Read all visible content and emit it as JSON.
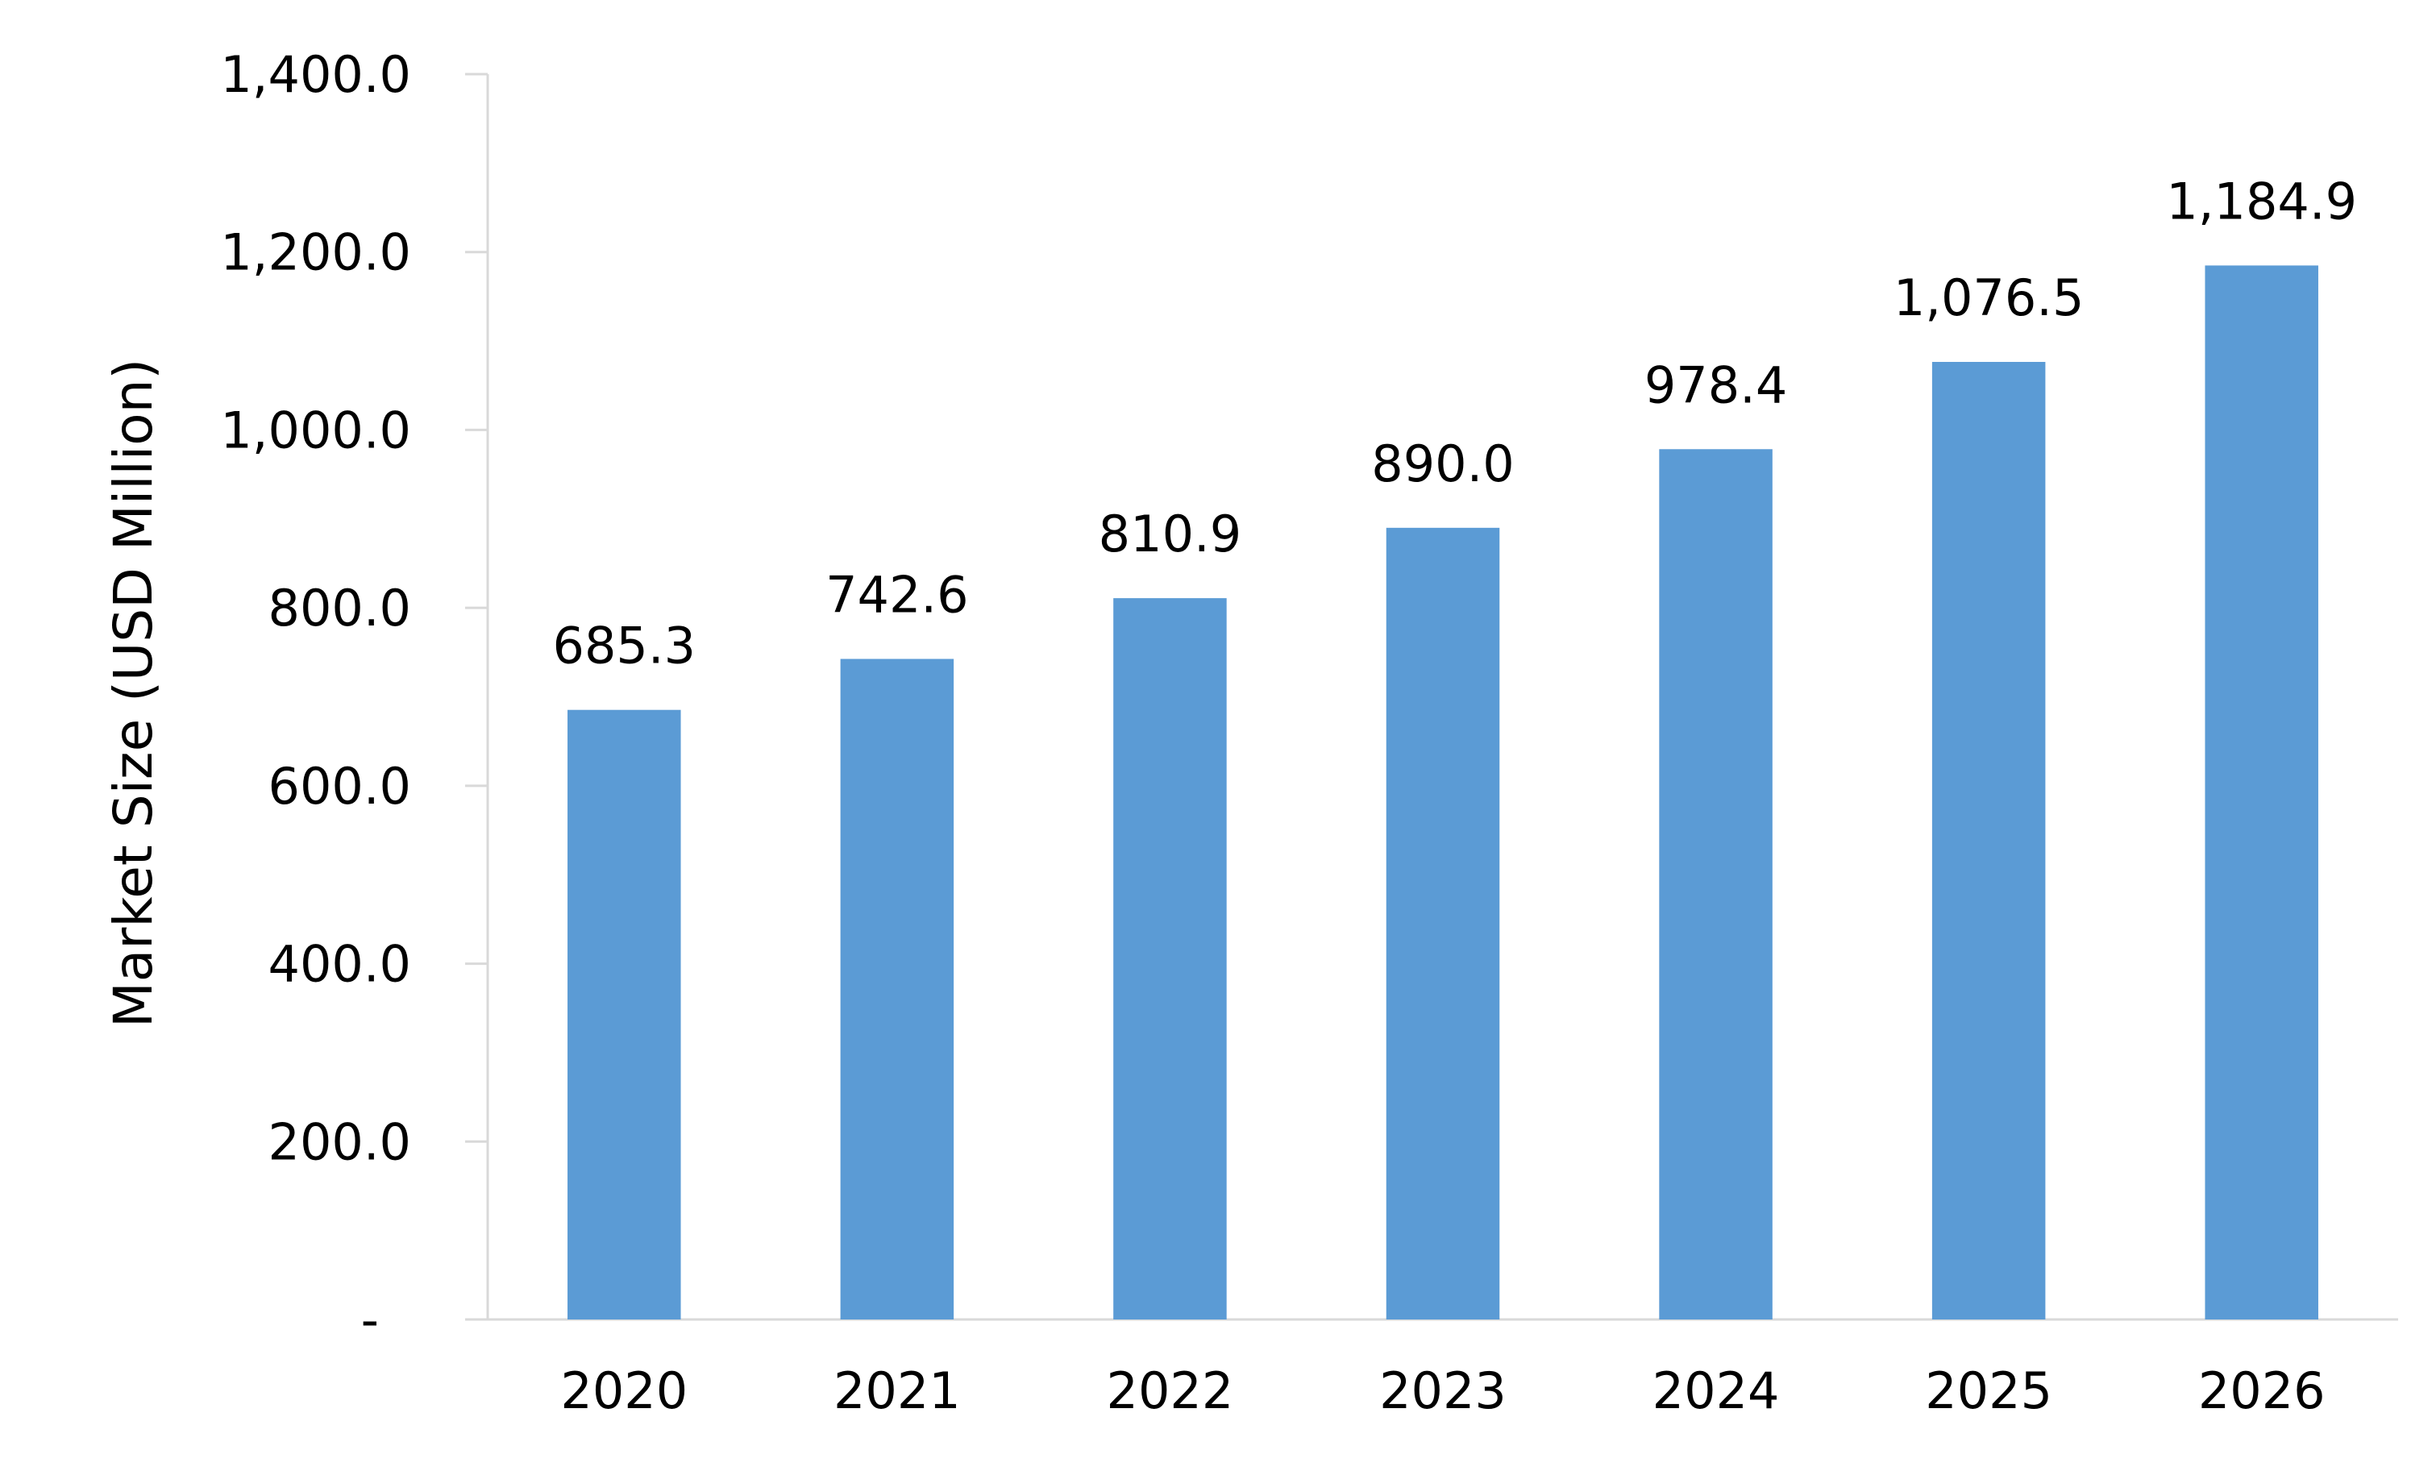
{
  "chart_data": {
    "type": "bar",
    "categories": [
      "2020",
      "2021",
      "2022",
      "2023",
      "2024",
      "2025",
      "2026"
    ],
    "values": [
      685.3,
      742.6,
      810.9,
      890.0,
      978.4,
      1076.5,
      1184.9
    ],
    "data_labels": [
      "685.3",
      "742.6",
      "810.9",
      "890.0",
      "978.4",
      "1,076.5",
      "1,184.9"
    ],
    "ylabel": "Market Size (USD Million)",
    "ylim": [
      0,
      1400
    ],
    "yticks": [
      0,
      200,
      400,
      600,
      800,
      1000,
      1200,
      1400
    ],
    "ytick_labels": [
      "-",
      "200.0",
      "400.0",
      "600.0",
      "800.0",
      "1,000.0",
      "1,200.0",
      "1,400.0"
    ],
    "bar_color": "#5B9BD5",
    "axis_color": "#D9D9D9",
    "grid": false,
    "legend": "none"
  }
}
